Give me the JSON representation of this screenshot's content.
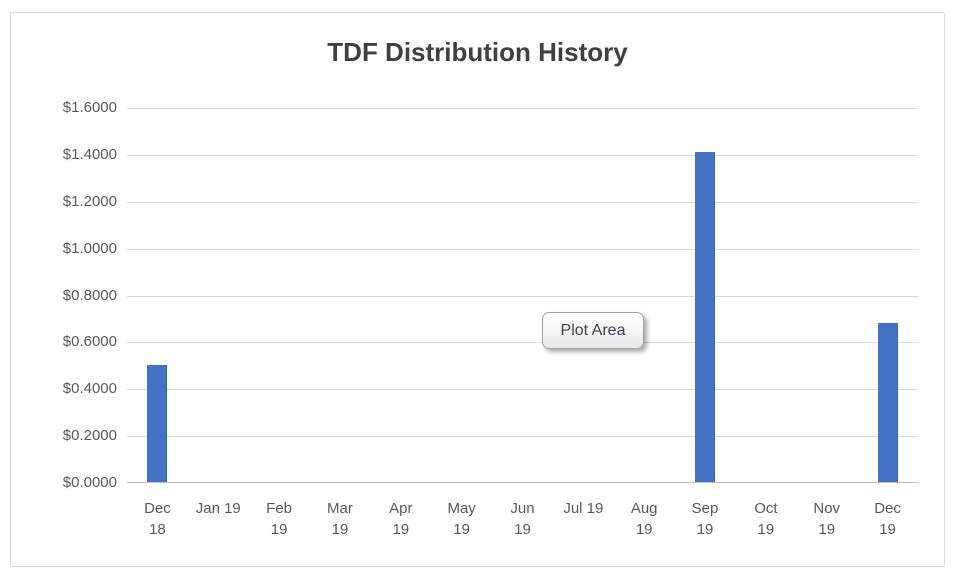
{
  "chart": {
    "title": "TDF Distribution History",
    "plot_area_tooltip": "Plot Area",
    "colors": {
      "bar": "#4472C4",
      "gridline": "#D9D9D9",
      "axis_line": "#BFBFBF",
      "tick_label": "#595959",
      "title": "#404040",
      "frame_border": "#D9D9D9",
      "background": "#FFFFFF"
    }
  },
  "chart_data": {
    "type": "bar",
    "title": "TDF Distribution History",
    "xlabel": "",
    "ylabel": "",
    "categories": [
      "Dec 18",
      "Jan 19",
      "Feb 19",
      "Mar 19",
      "Apr 19",
      "May 19",
      "Jun 19",
      "Jul 19",
      "Aug 19",
      "Sep 19",
      "Oct 19",
      "Nov 19",
      "Dec 19"
    ],
    "category_label_lines": [
      [
        "Dec",
        "18"
      ],
      [
        "Jan 19"
      ],
      [
        "Feb",
        "19"
      ],
      [
        "Mar",
        "19"
      ],
      [
        "Apr",
        "19"
      ],
      [
        "May",
        "19"
      ],
      [
        "Jun",
        "19"
      ],
      [
        "Jul 19"
      ],
      [
        "Aug",
        "19"
      ],
      [
        "Sep",
        "19"
      ],
      [
        "Oct",
        "19"
      ],
      [
        "Nov",
        "19"
      ],
      [
        "Dec",
        "19"
      ]
    ],
    "values": [
      0.5,
      0,
      0,
      0,
      0,
      0,
      0,
      0,
      0,
      1.41,
      0,
      0,
      0.68
    ],
    "ylim": [
      0,
      1.6
    ],
    "ytick_step": 0.2,
    "ytick_labels": [
      "$0.0000",
      "$0.2000",
      "$0.4000",
      "$0.6000",
      "$0.8000",
      "$1.0000",
      "$1.2000",
      "$1.4000",
      "$1.6000"
    ],
    "grid": true,
    "legend": false,
    "annotations": [
      "Plot Area"
    ]
  }
}
